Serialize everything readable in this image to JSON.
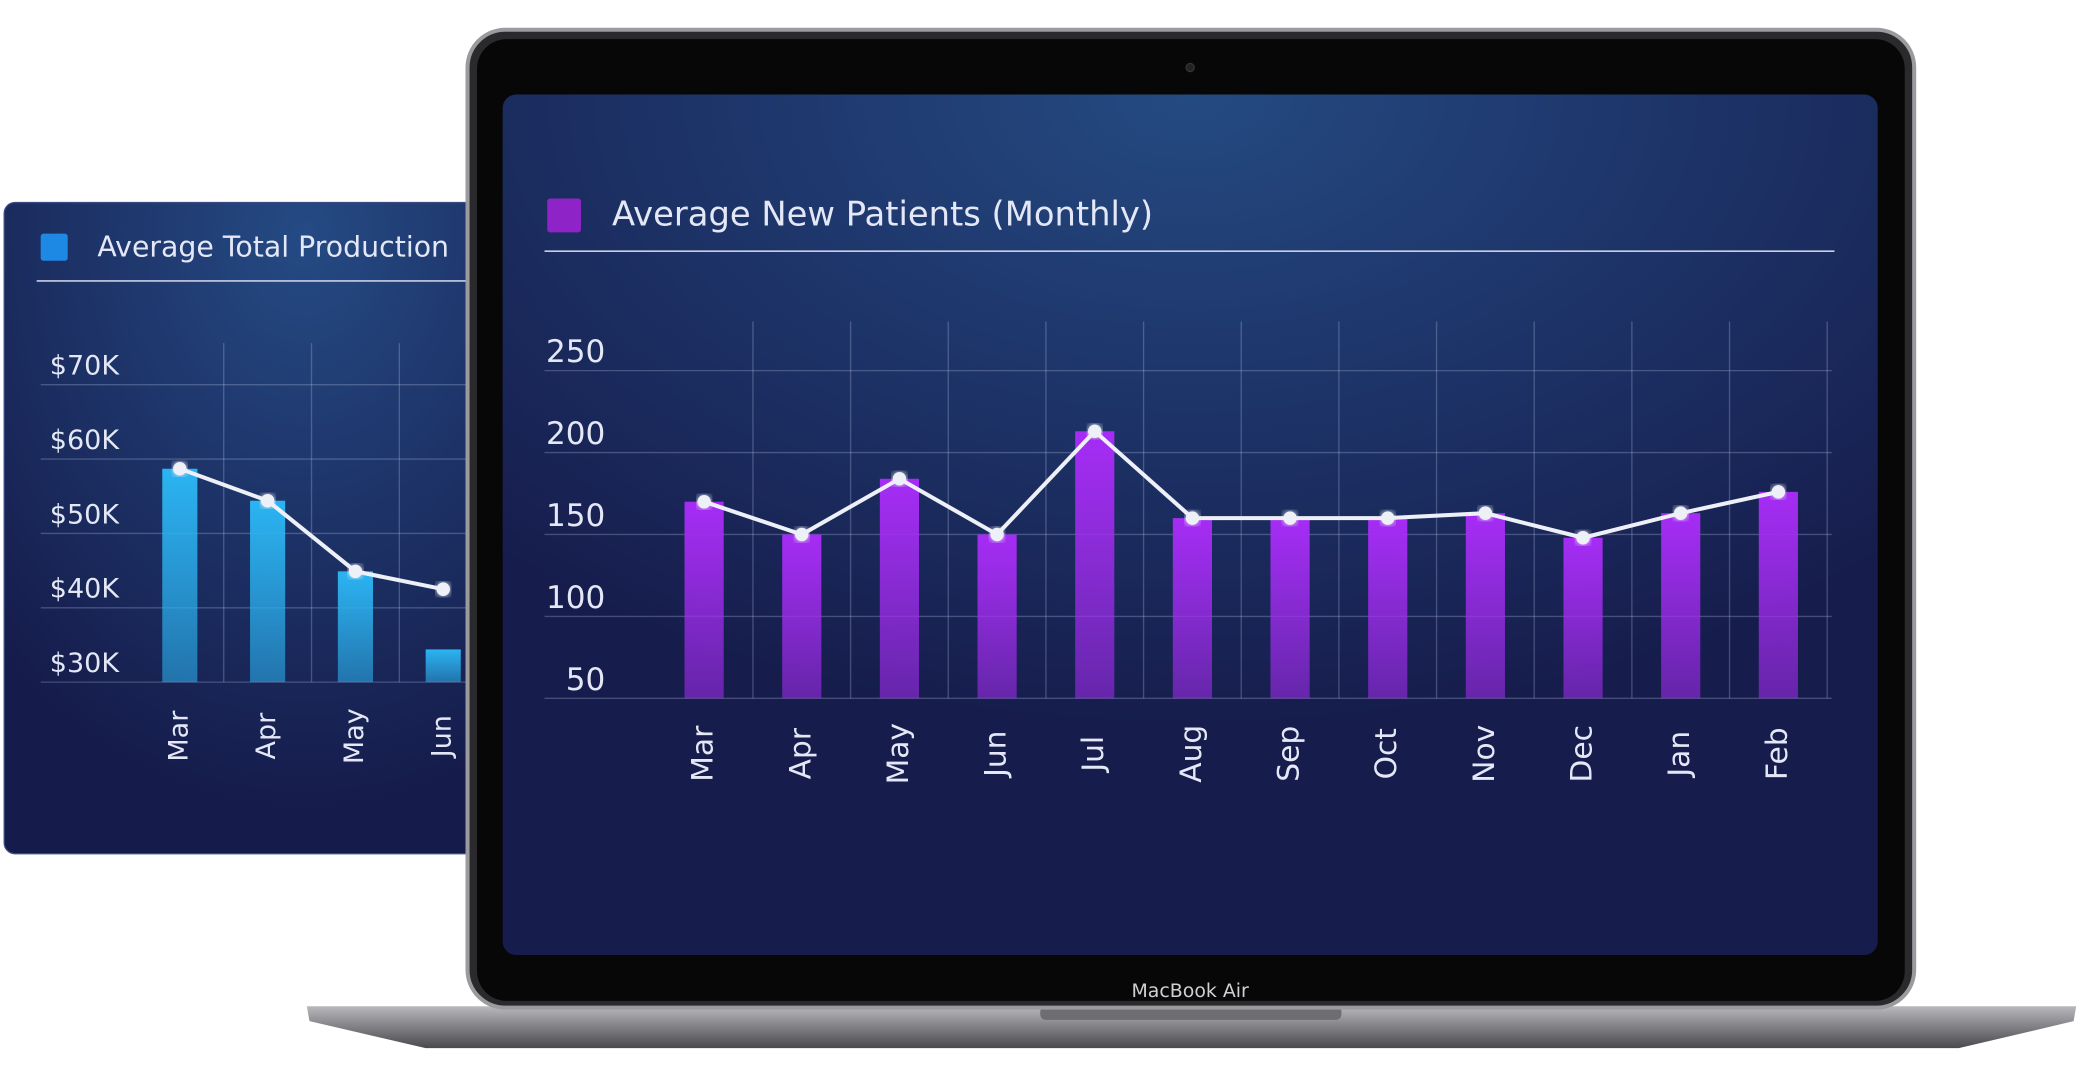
{
  "device_label": "MacBook Air",
  "chart_data": [
    {
      "type": "bar",
      "title": "Average Total Production",
      "categories": [
        "Mar",
        "Apr",
        "May",
        "Jun"
      ],
      "series": [
        {
          "type": "bar",
          "color": "#2bb4f2",
          "values": [
            58700,
            54400,
            44900,
            34400
          ]
        },
        {
          "type": "line",
          "color": "#eef0f8",
          "values": [
            58700,
            54400,
            44900,
            42500
          ]
        }
      ],
      "ylim": [
        30000,
        75600
      ],
      "yticks": [
        {
          "value": 70000,
          "label": "$70K"
        },
        {
          "value": 60000,
          "label": "$60K"
        },
        {
          "value": 50000,
          "label": "$50K"
        },
        {
          "value": 40000,
          "label": "$40K"
        },
        {
          "value": 30000,
          "label": "$30K"
        }
      ],
      "legend_color": "#1e88e5",
      "grid": true
    },
    {
      "type": "bar",
      "title": "Average New Patients (Monthly)",
      "categories": [
        "Mar",
        "Apr",
        "May",
        "Jun",
        "Jul",
        "Aug",
        "Sep",
        "Oct",
        "Nov",
        "Dec",
        "Jan",
        "Feb"
      ],
      "series": [
        {
          "type": "bar",
          "color": "#a62cf5",
          "values": [
            170,
            150,
            184,
            150,
            213,
            160,
            160,
            160,
            163,
            148,
            163,
            176
          ]
        },
        {
          "type": "line",
          "color": "#eef0f8",
          "values": [
            170,
            150,
            184,
            150,
            213,
            160,
            160,
            160,
            163,
            148,
            163,
            176
          ]
        }
      ],
      "ylim": [
        50,
        280
      ],
      "yticks": [
        250,
        200,
        150,
        100,
        50
      ],
      "legend_color": "#8e24c8",
      "grid": true
    }
  ]
}
